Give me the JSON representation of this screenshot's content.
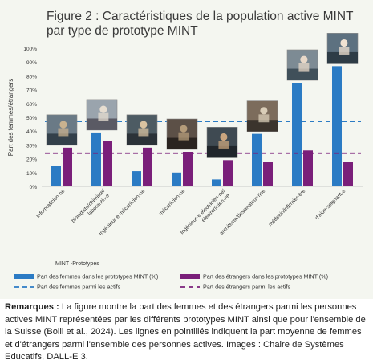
{
  "chart_data": {
    "type": "bar",
    "title_line1": "Figure 2 : Caractéristiques de la population active MINT",
    "title_line2": "par type de prototype MINT",
    "ylabel": "Part des femmes/étrangers",
    "xlabel": "MINT -Prototypes",
    "ylim": [
      0,
      100
    ],
    "yticks": [
      "0%",
      "10%",
      "20%",
      "30%",
      "40%",
      "50%",
      "60%",
      "70%",
      "80%",
      "90%",
      "100%"
    ],
    "grid": false,
    "legend_position": "bottom",
    "categories": [
      "Informaticien·ne",
      "biologiste/chimiste/ laborantin·e",
      "Ingénieur·e mécanicien·ne",
      "mécanicien·ne",
      "Ingénieur·e électricien·ne/ électronicien·ne",
      "architecte/dessinateur·rice",
      "médecin/infirmier·ère",
      "d'aide-soignant·e"
    ],
    "series": [
      {
        "name": "Part des femmes dans les prototypes MINT (%)",
        "color": "#2b7bc4",
        "values": [
          15,
          39,
          11,
          10,
          5,
          38,
          75,
          87
        ]
      },
      {
        "name": "Part des étrangers dans les prototypes MINT (%)",
        "color": "#7a1f7a",
        "values": [
          28,
          33,
          28,
          25,
          19,
          18,
          26,
          18
        ]
      }
    ],
    "reference_lines": [
      {
        "name": "Part des femmes parmi les actifs",
        "color": "#2b7bc4",
        "value": 47
      },
      {
        "name": "Part des étrangers parmi les actifs",
        "color": "#7a1f7a",
        "value": 24
      }
    ],
    "images": [
      "photo-informaticien",
      "photo-biologiste",
      "photo-ingenieur-mecanicien",
      "photo-mecanicien",
      "photo-ingenieur-electricien",
      "photo-architecte",
      "photo-medecin",
      "photo-aide-soignant"
    ]
  },
  "note": {
    "label": "Remarques :",
    "text": "La figure montre la part des femmes et des étrangers parmi les personnes actives MINT représentées par les différents prototypes MINT ainsi que pour l'ensemble de la Suisse (Bolli et al., 2024). Les lignes en pointillés indiquent la part moyenne de femmes et d'étrangers parmi l'ensemble des personnes actives. Images : Chaire de Systèmes Educatifs, DALL-E 3."
  }
}
